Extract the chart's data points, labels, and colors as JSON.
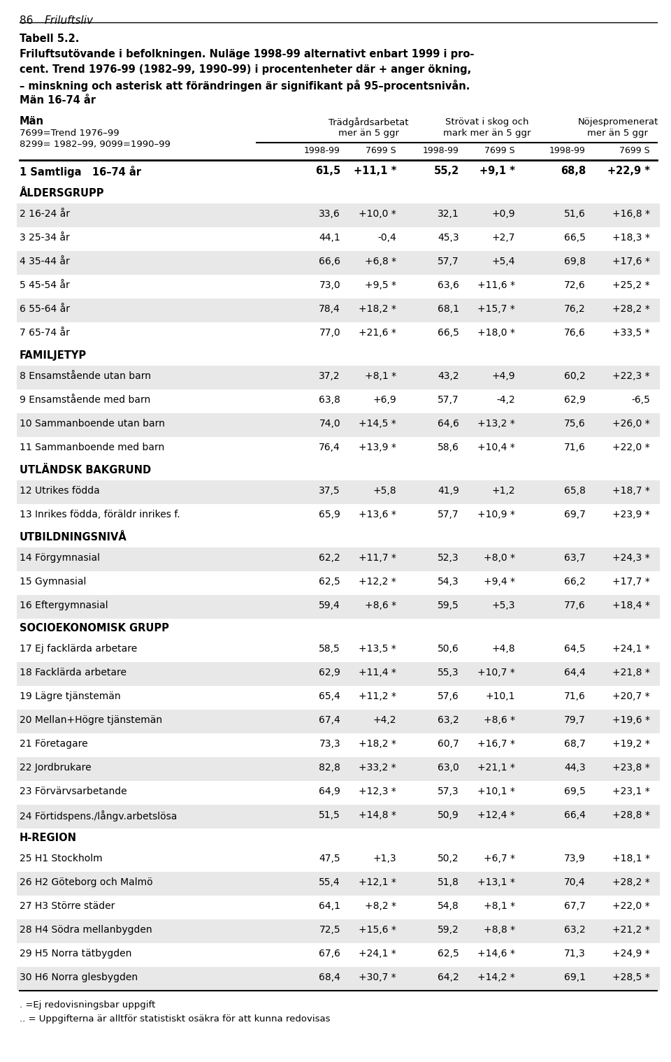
{
  "page_header_num": "86",
  "page_header_title": "Friluftsliv",
  "table_title_lines": [
    {
      "text": "Tabell 5.2.",
      "bold": true
    },
    {
      "text": "Friluftsutövande i befolkningen. Nuläge 1998-99 alternativt enbart 1999 i pro-",
      "bold": true
    },
    {
      "text": "cent. Trend 1976-99 (1982–99, 1990–99) i procentenheter där + anger ökning,",
      "bold": true
    },
    {
      "text": "– minskning och asterisk att förändringen är signifikant på 95–procentsnivån.",
      "bold": true
    },
    {
      "text": "Män 16-74 år",
      "bold": true
    }
  ],
  "col_header_left": [
    "Män",
    "7699=Trend 1976–99",
    "8299= 1982–99, 9099=1990–99"
  ],
  "group_headers": [
    "Trädgårdsarbetat\nmer än 5 ggr",
    "Strövat i skog och\nmark mer än 5 ggr",
    "Nöjespromenerat\nmer än 5 ggr"
  ],
  "sub_headers": [
    "1998-99",
    "7699 S",
    "1998-99",
    "7699 S",
    "1998-99",
    "7699 S"
  ],
  "rows": [
    {
      "num": "1",
      "label": "Samtliga   16–74 år",
      "vals": [
        "61,5",
        "+11,1 *",
        "55,2",
        "+9,1 *",
        "68,8",
        "+22,9 *"
      ],
      "bold": true,
      "section": false
    },
    {
      "num": "",
      "label": "ÅLDERSGRUPP",
      "vals": [
        "",
        "",
        "",
        "",
        "",
        ""
      ],
      "bold": true,
      "section": true
    },
    {
      "num": "2",
      "label": "16-24 år",
      "vals": [
        "33,6",
        "+10,0 *",
        "32,1",
        "+0,9",
        "51,6",
        "+16,8 *"
      ],
      "bold": false,
      "section": false
    },
    {
      "num": "3",
      "label": "25-34 år",
      "vals": [
        "44,1",
        "-0,4",
        "45,3",
        "+2,7",
        "66,5",
        "+18,3 *"
      ],
      "bold": false,
      "section": false
    },
    {
      "num": "4",
      "label": "35-44 år",
      "vals": [
        "66,6",
        "+6,8 *",
        "57,7",
        "+5,4",
        "69,8",
        "+17,6 *"
      ],
      "bold": false,
      "section": false
    },
    {
      "num": "5",
      "label": "45-54 år",
      "vals": [
        "73,0",
        "+9,5 *",
        "63,6",
        "+11,6 *",
        "72,6",
        "+25,2 *"
      ],
      "bold": false,
      "section": false
    },
    {
      "num": "6",
      "label": "55-64 år",
      "vals": [
        "78,4",
        "+18,2 *",
        "68,1",
        "+15,7 *",
        "76,2",
        "+28,2 *"
      ],
      "bold": false,
      "section": false
    },
    {
      "num": "7",
      "label": "65-74 år",
      "vals": [
        "77,0",
        "+21,6 *",
        "66,5",
        "+18,0 *",
        "76,6",
        "+33,5 *"
      ],
      "bold": false,
      "section": false
    },
    {
      "num": "",
      "label": "FAMILJETYP",
      "vals": [
        "",
        "",
        "",
        "",
        "",
        ""
      ],
      "bold": true,
      "section": true
    },
    {
      "num": "8",
      "label": "Ensamstående utan barn",
      "vals": [
        "37,2",
        "+8,1 *",
        "43,2",
        "+4,9",
        "60,2",
        "+22,3 *"
      ],
      "bold": false,
      "section": false
    },
    {
      "num": "9",
      "label": "Ensamstående med barn",
      "vals": [
        "63,8",
        "+6,9",
        "57,7",
        "-4,2",
        "62,9",
        "-6,5"
      ],
      "bold": false,
      "section": false
    },
    {
      "num": "10",
      "label": "Sammanboende utan barn",
      "vals": [
        "74,0",
        "+14,5 *",
        "64,6",
        "+13,2 *",
        "75,6",
        "+26,0 *"
      ],
      "bold": false,
      "section": false
    },
    {
      "num": "11",
      "label": "Sammanboende med barn",
      "vals": [
        "76,4",
        "+13,9 *",
        "58,6",
        "+10,4 *",
        "71,6",
        "+22,0 *"
      ],
      "bold": false,
      "section": false
    },
    {
      "num": "",
      "label": "UTLÄNDSK BAKGRUND",
      "vals": [
        "",
        "",
        "",
        "",
        "",
        ""
      ],
      "bold": true,
      "section": true
    },
    {
      "num": "12",
      "label": "Utrikes födda",
      "vals": [
        "37,5",
        "+5,8",
        "41,9",
        "+1,2",
        "65,8",
        "+18,7 *"
      ],
      "bold": false,
      "section": false
    },
    {
      "num": "13",
      "label": "Inrikes födda, föräldr inrikes f.",
      "vals": [
        "65,9",
        "+13,6 *",
        "57,7",
        "+10,9 *",
        "69,7",
        "+23,9 *"
      ],
      "bold": false,
      "section": false
    },
    {
      "num": "",
      "label": "UTBILDNINGSNIVÅ",
      "vals": [
        "",
        "",
        "",
        "",
        "",
        ""
      ],
      "bold": true,
      "section": true
    },
    {
      "num": "14",
      "label": "Förgymnasial",
      "vals": [
        "62,2",
        "+11,7 *",
        "52,3",
        "+8,0 *",
        "63,7",
        "+24,3 *"
      ],
      "bold": false,
      "section": false
    },
    {
      "num": "15",
      "label": "Gymnasial",
      "vals": [
        "62,5",
        "+12,2 *",
        "54,3",
        "+9,4 *",
        "66,2",
        "+17,7 *"
      ],
      "bold": false,
      "section": false
    },
    {
      "num": "16",
      "label": "Eftergymnasial",
      "vals": [
        "59,4",
        "+8,6 *",
        "59,5",
        "+5,3",
        "77,6",
        "+18,4 *"
      ],
      "bold": false,
      "section": false
    },
    {
      "num": "",
      "label": "SOCIOEKONOMISK GRUPP",
      "vals": [
        "",
        "",
        "",
        "",
        "",
        ""
      ],
      "bold": true,
      "section": true
    },
    {
      "num": "17",
      "label": "Ej facklärda arbetare",
      "vals": [
        "58,5",
        "+13,5 *",
        "50,6",
        "+4,8",
        "64,5",
        "+24,1 *"
      ],
      "bold": false,
      "section": false
    },
    {
      "num": "18",
      "label": "Facklärda arbetare",
      "vals": [
        "62,9",
        "+11,4 *",
        "55,3",
        "+10,7 *",
        "64,4",
        "+21,8 *"
      ],
      "bold": false,
      "section": false
    },
    {
      "num": "19",
      "label": "Lägre tjänstemän",
      "vals": [
        "65,4",
        "+11,2 *",
        "57,6",
        "+10,1",
        "71,6",
        "+20,7 *"
      ],
      "bold": false,
      "section": false
    },
    {
      "num": "20",
      "label": "Mellan+Högre tjänstemän",
      "vals": [
        "67,4",
        "+4,2",
        "63,2",
        "+8,6 *",
        "79,7",
        "+19,6 *"
      ],
      "bold": false,
      "section": false
    },
    {
      "num": "21",
      "label": "Företagare",
      "vals": [
        "73,3",
        "+18,2 *",
        "60,7",
        "+16,7 *",
        "68,7",
        "+19,2 *"
      ],
      "bold": false,
      "section": false
    },
    {
      "num": "22",
      "label": "Jordbrukare",
      "vals": [
        "82,8",
        "+33,2 *",
        "63,0",
        "+21,1 *",
        "44,3",
        "+23,8 *"
      ],
      "bold": false,
      "section": false
    },
    {
      "num": "23",
      "label": "Förvärvsarbetande",
      "vals": [
        "64,9",
        "+12,3 *",
        "57,3",
        "+10,1 *",
        "69,5",
        "+23,1 *"
      ],
      "bold": false,
      "section": false
    },
    {
      "num": "24",
      "label": "Förtidspens./långv.arbetslösa",
      "vals": [
        "51,5",
        "+14,8 *",
        "50,9",
        "+12,4 *",
        "66,4",
        "+28,8 *"
      ],
      "bold": false,
      "section": false
    },
    {
      "num": "",
      "label": "H-REGION",
      "vals": [
        "",
        "",
        "",
        "",
        "",
        ""
      ],
      "bold": true,
      "section": true
    },
    {
      "num": "25",
      "label": "H1 Stockholm",
      "vals": [
        "47,5",
        "+1,3",
        "50,2",
        "+6,7 *",
        "73,9",
        "+18,1 *"
      ],
      "bold": false,
      "section": false
    },
    {
      "num": "26",
      "label": "H2 Göteborg och Malmö",
      "vals": [
        "55,4",
        "+12,1 *",
        "51,8",
        "+13,1 *",
        "70,4",
        "+28,2 *"
      ],
      "bold": false,
      "section": false
    },
    {
      "num": "27",
      "label": "H3 Större städer",
      "vals": [
        "64,1",
        "+8,2 *",
        "54,8",
        "+8,1 *",
        "67,7",
        "+22,0 *"
      ],
      "bold": false,
      "section": false
    },
    {
      "num": "28",
      "label": "H4 Södra mellanbygden",
      "vals": [
        "72,5",
        "+15,6 *",
        "59,2",
        "+8,8 *",
        "63,2",
        "+21,2 *"
      ],
      "bold": false,
      "section": false
    },
    {
      "num": "29",
      "label": "H5 Norra tätbygden",
      "vals": [
        "67,6",
        "+24,1 *",
        "62,5",
        "+14,6 *",
        "71,3",
        "+24,9 *"
      ],
      "bold": false,
      "section": false
    },
    {
      "num": "30",
      "label": "H6 Norra glesbygden",
      "vals": [
        "68,4",
        "+30,7 *",
        "64,2",
        "+14,2 *",
        "69,1",
        "+28,5 *"
      ],
      "bold": false,
      "section": false
    }
  ],
  "footnotes": [
    ". =Ej redovisningsbar uppgift",
    ".. = Uppgifterna är alltför statistiskt osäkra för att kunna redovisas"
  ],
  "bg_even": "#e8e8e8",
  "bg_odd": "#ffffff"
}
